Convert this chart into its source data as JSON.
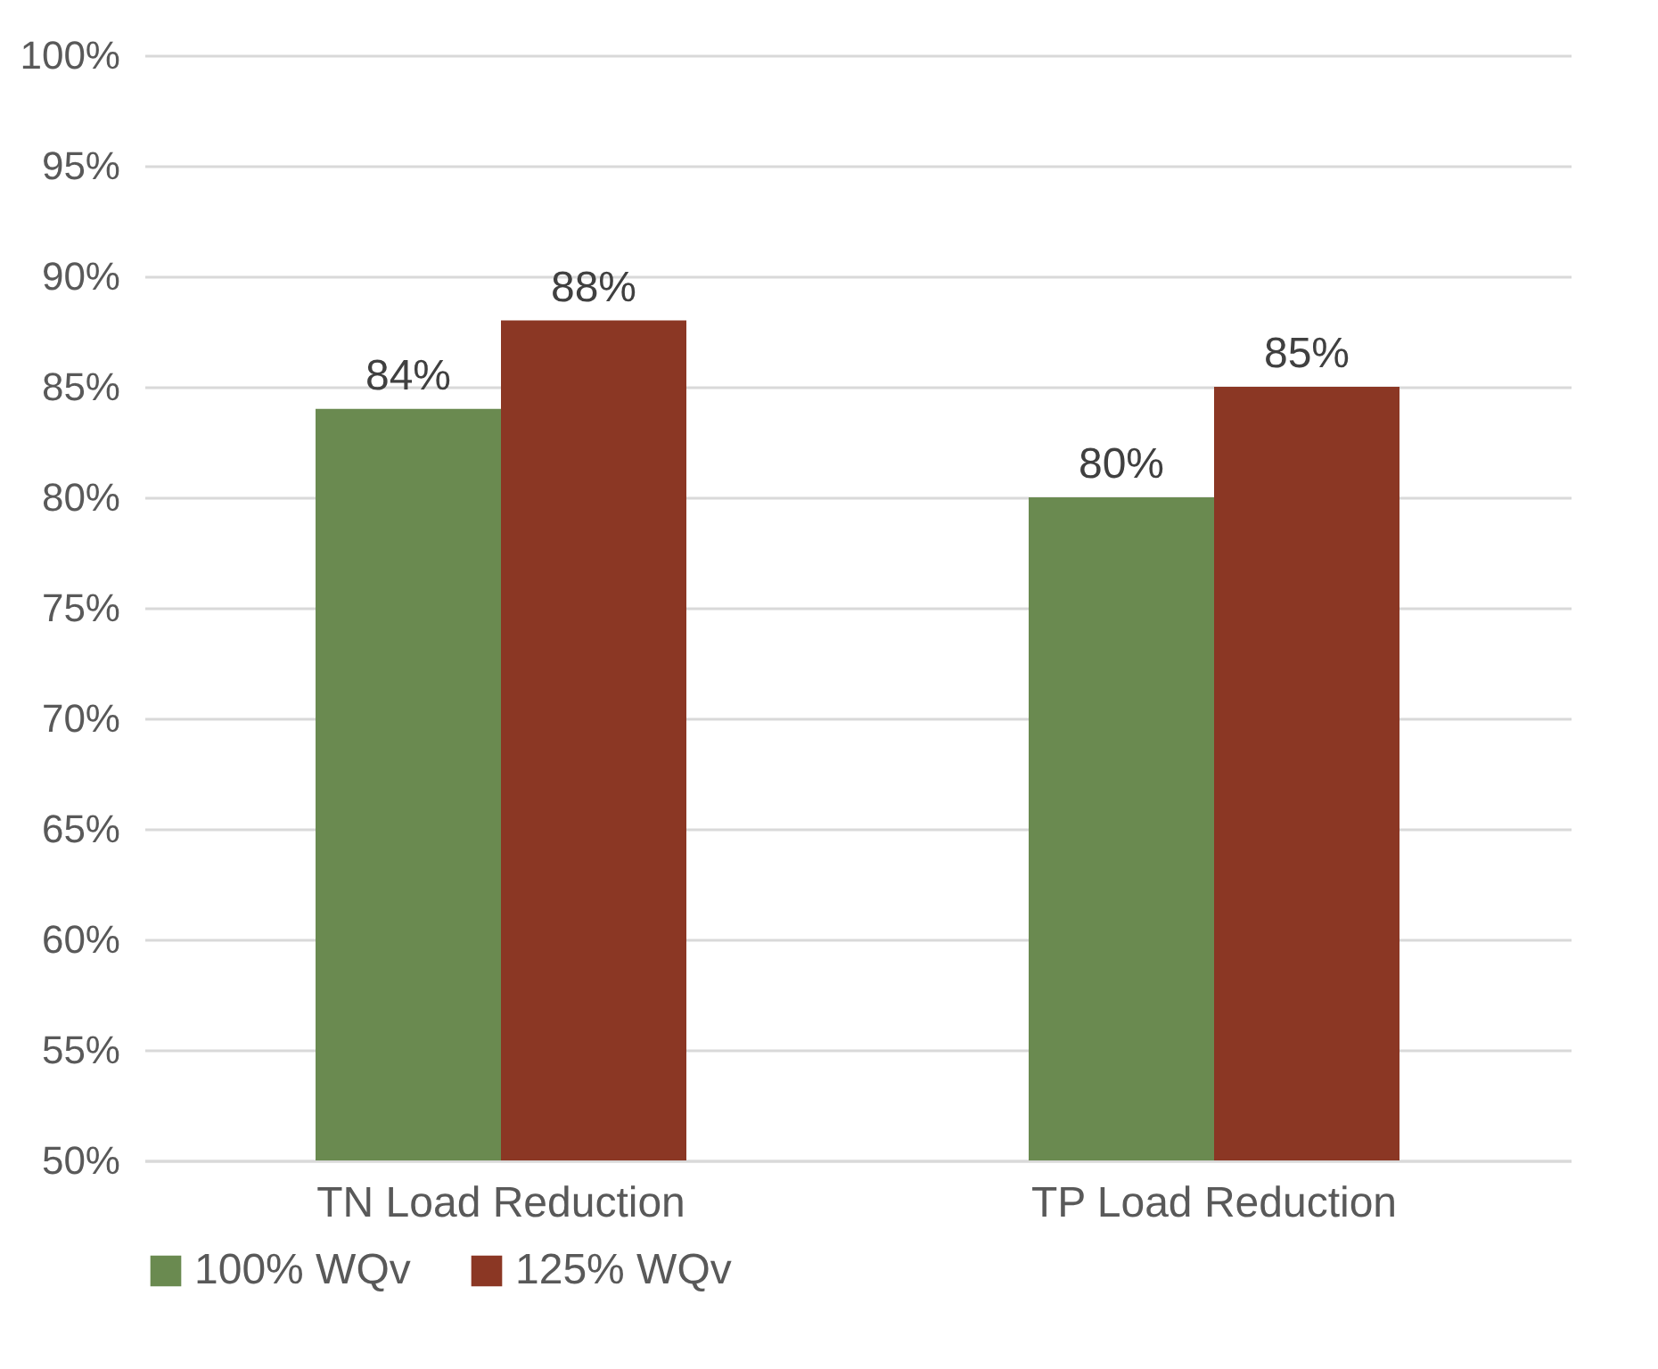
{
  "chart_data": {
    "type": "bar",
    "categories": [
      "TN Load Reduction",
      "TP Load Reduction"
    ],
    "series": [
      {
        "name": "100% WQv",
        "color": "#6a8a50",
        "values": [
          84,
          80
        ],
        "value_labels": [
          "84%",
          "80%"
        ]
      },
      {
        "name": "125% WQv",
        "color": "#8b3724",
        "values": [
          88,
          85
        ],
        "value_labels": [
          "88%",
          "85%"
        ]
      }
    ],
    "ylim": [
      50,
      100
    ],
    "yticks": [
      {
        "value": 50,
        "label": "50%"
      },
      {
        "value": 55,
        "label": "55%"
      },
      {
        "value": 60,
        "label": "60%"
      },
      {
        "value": 65,
        "label": "65%"
      },
      {
        "value": 70,
        "label": "70%"
      },
      {
        "value": 75,
        "label": "75%"
      },
      {
        "value": 80,
        "label": "80%"
      },
      {
        "value": 85,
        "label": "85%"
      },
      {
        "value": 90,
        "label": "90%"
      },
      {
        "value": 95,
        "label": "95%"
      },
      {
        "value": 100,
        "label": "100%"
      }
    ],
    "grid": "y",
    "legend": "bottom"
  }
}
